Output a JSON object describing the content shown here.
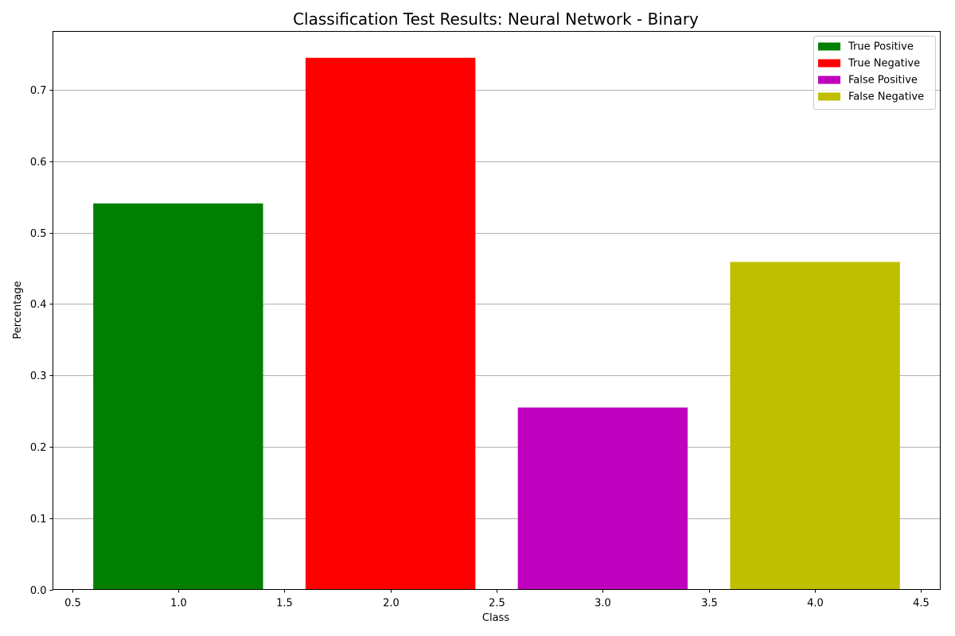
{
  "chart_data": {
    "type": "bar",
    "title": "Classification Test Results: Neural Network - Binary",
    "xlabel": "Class",
    "ylabel": "Percentage",
    "xlim": [
      0.41,
      4.59
    ],
    "ylim": [
      0,
      0.782
    ],
    "x_ticks": [
      0.5,
      1.0,
      1.5,
      2.0,
      2.5,
      3.0,
      3.5,
      4.0,
      4.5
    ],
    "x_tick_labels": [
      "0.5",
      "1.0",
      "1.5",
      "2.0",
      "2.5",
      "3.0",
      "3.5",
      "4.0",
      "4.5"
    ],
    "y_ticks": [
      0.0,
      0.1,
      0.2,
      0.3,
      0.4,
      0.5,
      0.6,
      0.7
    ],
    "y_tick_labels": [
      "0.0",
      "0.1",
      "0.2",
      "0.3",
      "0.4",
      "0.5",
      "0.6",
      "0.7"
    ],
    "bar_width": 0.8,
    "grid": "y",
    "legend_position": "top-right",
    "series": [
      {
        "name": "True Positive",
        "x": 1,
        "value": 0.541,
        "color": "#008000"
      },
      {
        "name": "True Negative",
        "x": 2,
        "value": 0.745,
        "color": "#ff0000"
      },
      {
        "name": "False Positive",
        "x": 3,
        "value": 0.255,
        "color": "#bf00bf"
      },
      {
        "name": "False Negative",
        "x": 4,
        "value": 0.459,
        "color": "#bfbf00"
      }
    ]
  }
}
